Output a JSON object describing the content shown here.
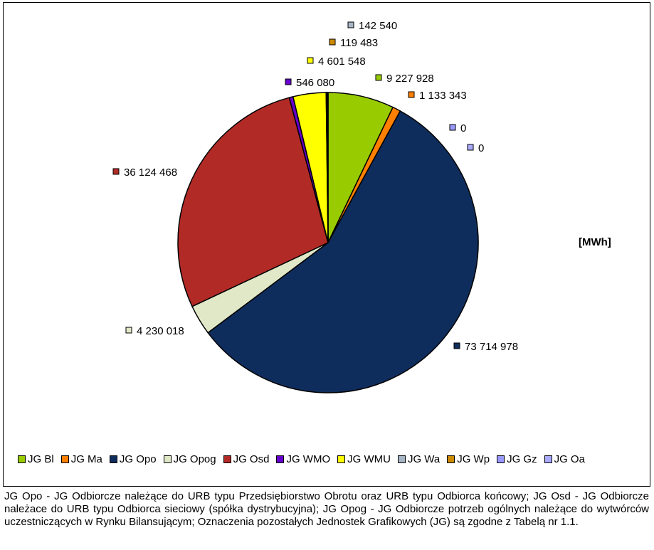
{
  "chart_data": {
    "type": "pie",
    "unit_label": "[MWh]",
    "slices": [
      {
        "name": "JG Bl",
        "value": 9227928,
        "label": "9 227 928",
        "color": "#99CC00"
      },
      {
        "name": "JG Ma",
        "value": 1133343,
        "label": "1 133 343",
        "color": "#FF8000"
      },
      {
        "name": "JG Opo",
        "value": 73714978,
        "label": "73 714 978",
        "color": "#0F2D5C"
      },
      {
        "name": "JG Opog",
        "value": 4230018,
        "label": "4 230 018",
        "color": "#E0E8C8"
      },
      {
        "name": "JG Osd",
        "value": 36124468,
        "label": "36 124 468",
        "color": "#B22A26"
      },
      {
        "name": "JG WMO",
        "value": 546080,
        "label": "546 080",
        "color": "#6600CC"
      },
      {
        "name": "JG WMU",
        "value": 4601548,
        "label": "4 601 548",
        "color": "#FFFF00"
      },
      {
        "name": "JG Wa",
        "value": 142540,
        "label": "142 540",
        "color": "#A6B6C6"
      },
      {
        "name": "JG Wp",
        "value": 119483,
        "label": "119 483",
        "color": "#CC8A00"
      },
      {
        "name": "JG Gz",
        "value": 0,
        "label": "0",
        "color": "#9999FF"
      },
      {
        "name": "JG Oa",
        "value": 0,
        "label": "0",
        "color": "#AAAAFF"
      }
    ],
    "legend_position": "bottom"
  },
  "footnote": "JG Opo - JG Odbiorcze należące do URB typu Przedsiębiorstwo Obrotu oraz URB typu Odbiorca końcowy; JG Osd - JG Odbiorcze należace do URB typu Odbiorca sieciowy (spółka dystrybucyjna); JG Opog - JG Odbiorcze potrzeb ogólnych należące do wytwórców uczestniczących w Rynku Bilansującym; Oznaczenia pozostałych Jednostek Grafikowych (JG) są zgodne z Tabelą nr 1.1."
}
